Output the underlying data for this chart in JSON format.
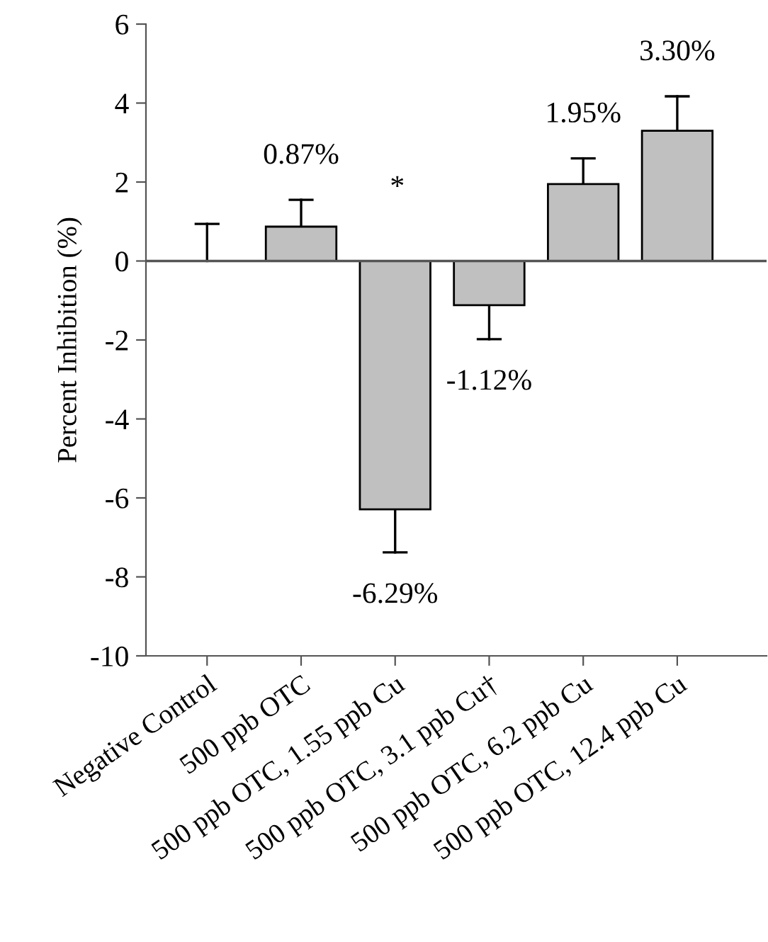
{
  "chart_data": {
    "type": "bar",
    "ylabel": "Percent Inhibition (%)",
    "categories": [
      "Negative Control",
      "500 ppb OTC",
      "500 ppb OTC, 1.55 ppb Cu",
      "500 ppb OTC, 3.1 ppb Cu†",
      "500 ppb OTC, 6.2 ppb Cu",
      "500 ppb OTC, 12.4 ppb Cu"
    ],
    "values": [
      0,
      0.87,
      -6.29,
      -1.12,
      1.95,
      3.3
    ],
    "errors": [
      [
        0,
        0.94
      ],
      [
        0.87,
        1.55
      ],
      [
        -7.38,
        -6.29
      ],
      [
        -1.98,
        -1.12
      ],
      [
        1.95,
        2.6
      ],
      [
        3.3,
        4.17
      ]
    ],
    "value_labels": [
      null,
      "0.87%",
      "-6.29%",
      "-1.12%",
      "1.95%",
      "3.30%"
    ],
    "color": "#c0c0c0",
    "annotations": [
      "*"
    ],
    "ref_lines": [
      {
        "axis": "y",
        "value": 0,
        "color": "#555555"
      }
    ],
    "ylim": [
      -10,
      6
    ],
    "yticks": [
      -10,
      -8,
      -6,
      -4,
      -2,
      0,
      2,
      4,
      6
    ],
    "grid": false,
    "legend": false
  }
}
